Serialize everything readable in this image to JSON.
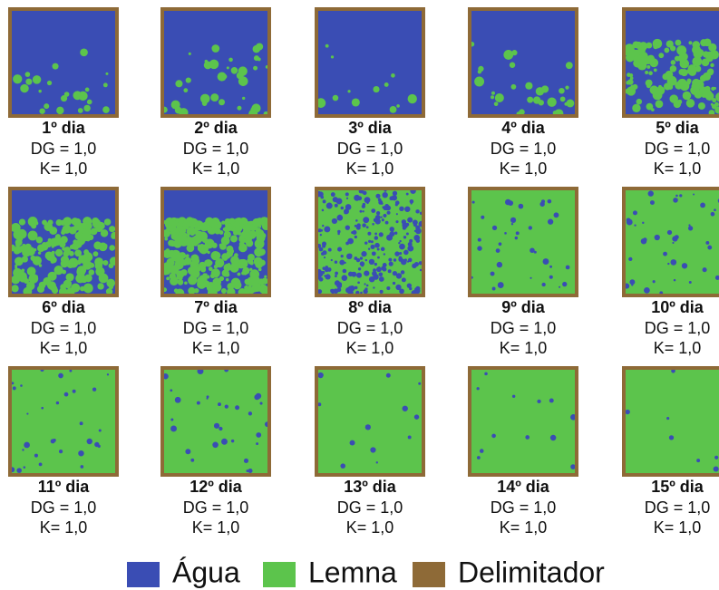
{
  "panels": [
    {
      "label": "1º dia",
      "dg": "DG = 1,0",
      "k": "K= 1,0"
    },
    {
      "label": "2º dia",
      "dg": "DG = 1,0",
      "k": "K= 1,0"
    },
    {
      "label": "3º dia",
      "dg": "DG = 1,0",
      "k": "K= 1,0"
    },
    {
      "label": "4º dia",
      "dg": "DG = 1,0",
      "k": "K= 1,0"
    },
    {
      "label": "5º dia",
      "dg": "DG = 1,0",
      "k": "K= 1,0"
    },
    {
      "label": "6º dia",
      "dg": "DG = 1,0",
      "k": "K= 1,0"
    },
    {
      "label": "7º dia",
      "dg": "DG = 1,0",
      "k": "K= 1,0"
    },
    {
      "label": "8º dia",
      "dg": "DG = 1,0",
      "k": "K= 1,0"
    },
    {
      "label": "9º dia",
      "dg": "DG = 1,0",
      "k": "K= 1,0"
    },
    {
      "label": "10º dia",
      "dg": "DG = 1,0",
      "k": "K= 1,0"
    },
    {
      "label": "11º dia",
      "dg": "DG = 1,0",
      "k": "K= 1,0"
    },
    {
      "label": "12º dia",
      "dg": "DG = 1,0",
      "k": "K= 1,0"
    },
    {
      "label": "13º dia",
      "dg": "DG = 1,0",
      "k": "K= 1,0"
    },
    {
      "label": "14º dia",
      "dg": "DG = 1,0",
      "k": "K= 1,0"
    },
    {
      "label": "15º dia",
      "dg": "DG = 1,0",
      "k": "K= 1,0"
    }
  ],
  "legend": [
    {
      "label": "Água",
      "color": "#3a4db4"
    },
    {
      "label": "Lemna",
      "color": "#5cc44c"
    },
    {
      "label": "Delimitador",
      "color": "#8e6a37"
    }
  ]
}
